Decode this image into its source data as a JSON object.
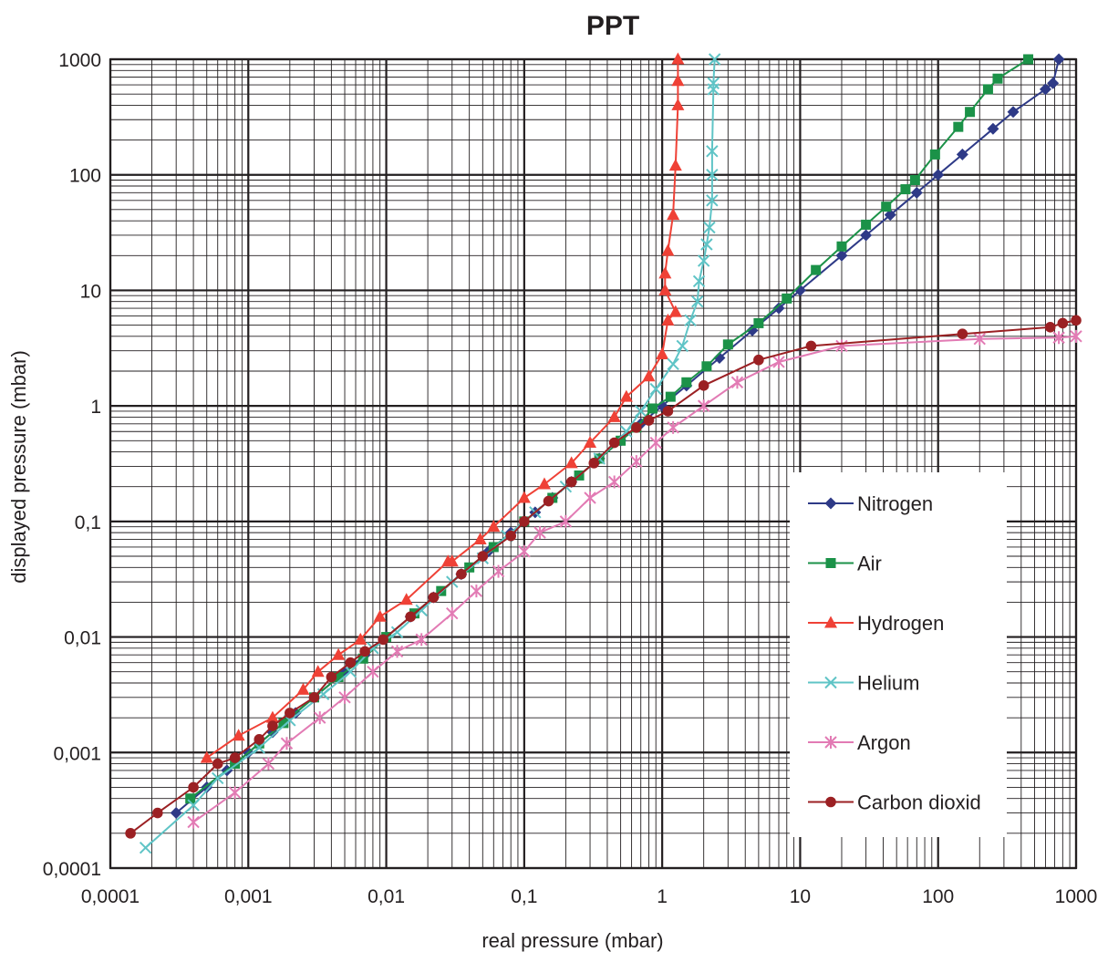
{
  "chart_data": {
    "type": "line",
    "title": "PPT",
    "xlabel": "real pressure (mbar)",
    "ylabel": "displayed pressure (mbar)",
    "x_scale": "log",
    "y_scale": "log",
    "xlim": [
      0.0001,
      1000
    ],
    "ylim": [
      0.0001,
      1000
    ],
    "grid": true,
    "legend_position": "bottom-right",
    "x_tick_labels": [
      "0,0001",
      "0,001",
      "0,01",
      "0,1",
      "1",
      "10",
      "100",
      "1000"
    ],
    "y_tick_labels": [
      "0,0001",
      "0,001",
      "0,01",
      "0,1",
      "1",
      "10",
      "100",
      "1000"
    ],
    "series": [
      {
        "name": "Nitrogen",
        "color": "#2e3a87",
        "marker": "diamond",
        "points": [
          [
            0.0003,
            0.0003
          ],
          [
            0.0005,
            0.0005
          ],
          [
            0.0007,
            0.0007
          ],
          [
            0.001,
            0.001
          ],
          [
            0.0015,
            0.0015
          ],
          [
            0.0022,
            0.0022
          ],
          [
            0.003,
            0.003
          ],
          [
            0.005,
            0.005
          ],
          [
            0.007,
            0.007
          ],
          [
            0.01,
            0.01
          ],
          [
            0.015,
            0.015
          ],
          [
            0.022,
            0.022
          ],
          [
            0.035,
            0.035
          ],
          [
            0.055,
            0.055
          ],
          [
            0.08,
            0.08
          ],
          [
            0.12,
            0.12
          ],
          [
            0.16,
            0.16
          ],
          [
            0.22,
            0.22
          ],
          [
            0.35,
            0.35
          ],
          [
            0.5,
            0.5
          ],
          [
            0.7,
            0.7
          ],
          [
            1,
            1
          ],
          [
            1.5,
            1.5
          ],
          [
            2.6,
            2.6
          ],
          [
            4.5,
            4.5
          ],
          [
            7,
            7
          ],
          [
            10,
            10
          ],
          [
            20,
            20
          ],
          [
            30,
            30
          ],
          [
            45,
            45
          ],
          [
            70,
            70
          ],
          [
            100,
            100
          ],
          [
            150,
            150
          ],
          [
            250,
            250
          ],
          [
            350,
            350
          ],
          [
            600,
            550
          ],
          [
            680,
            620
          ],
          [
            750,
            1000
          ]
        ]
      },
      {
        "name": "Air",
        "color": "#1b9248",
        "marker": "square",
        "points": [
          [
            0.00038,
            0.0004
          ],
          [
            0.0008,
            0.0008
          ],
          [
            0.0012,
            0.0012
          ],
          [
            0.0018,
            0.0018
          ],
          [
            0.003,
            0.003
          ],
          [
            0.0045,
            0.0045
          ],
          [
            0.0068,
            0.0065
          ],
          [
            0.01,
            0.01
          ],
          [
            0.016,
            0.016
          ],
          [
            0.025,
            0.025
          ],
          [
            0.04,
            0.04
          ],
          [
            0.06,
            0.06
          ],
          [
            0.1,
            0.1
          ],
          [
            0.16,
            0.16
          ],
          [
            0.25,
            0.25
          ],
          [
            0.35,
            0.35
          ],
          [
            0.5,
            0.5
          ],
          [
            0.65,
            0.65
          ],
          [
            0.85,
            0.95
          ],
          [
            1.15,
            1.2
          ],
          [
            1.5,
            1.6
          ],
          [
            2.1,
            2.2
          ],
          [
            3,
            3.4
          ],
          [
            5,
            5.2
          ],
          [
            8,
            8.5
          ],
          [
            13,
            15
          ],
          [
            20,
            24
          ],
          [
            30,
            37
          ],
          [
            42,
            53
          ],
          [
            58,
            75
          ],
          [
            68,
            90
          ],
          [
            95,
            150
          ],
          [
            140,
            260
          ],
          [
            170,
            350
          ],
          [
            230,
            550
          ],
          [
            270,
            680
          ],
          [
            450,
            1000
          ]
        ]
      },
      {
        "name": "Hydrogen",
        "color": "#ef4136",
        "marker": "triangle",
        "points": [
          [
            0.0005,
            0.0009
          ],
          [
            0.00085,
            0.0014
          ],
          [
            0.0015,
            0.002
          ],
          [
            0.0025,
            0.0035
          ],
          [
            0.0032,
            0.005
          ],
          [
            0.0045,
            0.007
          ],
          [
            0.0065,
            0.0095
          ],
          [
            0.009,
            0.015
          ],
          [
            0.014,
            0.021
          ],
          [
            0.028,
            0.045
          ],
          [
            0.03,
            0.045
          ],
          [
            0.048,
            0.07
          ],
          [
            0.06,
            0.09
          ],
          [
            0.1,
            0.16
          ],
          [
            0.14,
            0.21
          ],
          [
            0.22,
            0.32
          ],
          [
            0.3,
            0.48
          ],
          [
            0.45,
            0.8
          ],
          [
            0.55,
            1.2
          ],
          [
            0.8,
            1.8
          ],
          [
            1.0,
            2.8
          ],
          [
            1.1,
            5.5
          ],
          [
            1.25,
            6.5
          ],
          [
            1.05,
            10
          ],
          [
            1.05,
            14
          ],
          [
            1.1,
            22
          ],
          [
            1.2,
            45
          ],
          [
            1.25,
            120
          ],
          [
            1.3,
            400
          ],
          [
            1.3,
            650
          ],
          [
            1.3,
            1000
          ]
        ]
      },
      {
        "name": "Helium",
        "color": "#5fc4c6",
        "marker": "x",
        "points": [
          [
            0.00018,
            0.00015
          ],
          [
            0.0004,
            0.00035
          ],
          [
            0.0006,
            0.0006
          ],
          [
            0.0012,
            0.0011
          ],
          [
            0.002,
            0.0019
          ],
          [
            0.0035,
            0.0032
          ],
          [
            0.0055,
            0.005
          ],
          [
            0.008,
            0.008
          ],
          [
            0.012,
            0.011
          ],
          [
            0.018,
            0.017
          ],
          [
            0.03,
            0.03
          ],
          [
            0.05,
            0.048
          ],
          [
            0.075,
            0.075
          ],
          [
            0.12,
            0.12
          ],
          [
            0.2,
            0.2
          ],
          [
            0.35,
            0.35
          ],
          [
            0.55,
            0.6
          ],
          [
            0.7,
            0.9
          ],
          [
            0.9,
            1.4
          ],
          [
            1.2,
            2.3
          ],
          [
            1.4,
            3.3
          ],
          [
            1.6,
            5.5
          ],
          [
            1.8,
            8
          ],
          [
            1.85,
            12
          ],
          [
            2.0,
            18
          ],
          [
            2.1,
            25
          ],
          [
            2.2,
            35
          ],
          [
            2.3,
            60
          ],
          [
            2.3,
            100
          ],
          [
            2.3,
            160
          ],
          [
            2.35,
            550
          ],
          [
            2.35,
            620
          ],
          [
            2.4,
            1000
          ]
        ]
      },
      {
        "name": "Argon",
        "color": "#e27bb4",
        "marker": "star",
        "points": [
          [
            0.0004,
            0.00025
          ],
          [
            0.0008,
            0.00045
          ],
          [
            0.0014,
            0.0008
          ],
          [
            0.0019,
            0.0012
          ],
          [
            0.0033,
            0.002
          ],
          [
            0.005,
            0.003
          ],
          [
            0.008,
            0.005
          ],
          [
            0.012,
            0.0075
          ],
          [
            0.018,
            0.0095
          ],
          [
            0.03,
            0.016
          ],
          [
            0.045,
            0.025
          ],
          [
            0.065,
            0.037
          ],
          [
            0.1,
            0.055
          ],
          [
            0.13,
            0.08
          ],
          [
            0.2,
            0.1
          ],
          [
            0.3,
            0.16
          ],
          [
            0.45,
            0.22
          ],
          [
            0.65,
            0.33
          ],
          [
            0.9,
            0.48
          ],
          [
            1.2,
            0.65
          ],
          [
            2,
            1.0
          ],
          [
            3.5,
            1.6
          ],
          [
            7,
            2.4
          ],
          [
            20,
            3.3
          ],
          [
            200,
            3.8
          ],
          [
            750,
            3.9
          ],
          [
            1000,
            4.0
          ]
        ]
      },
      {
        "name": "Carbon dioxid",
        "color": "#9b2023",
        "marker": "circle",
        "points": [
          [
            0.00014,
            0.0002
          ],
          [
            0.00022,
            0.0003
          ],
          [
            0.0004,
            0.0005
          ],
          [
            0.0006,
            0.0008
          ],
          [
            0.0008,
            0.0009
          ],
          [
            0.0012,
            0.0013
          ],
          [
            0.0015,
            0.0017
          ],
          [
            0.002,
            0.0022
          ],
          [
            0.003,
            0.003
          ],
          [
            0.004,
            0.0045
          ],
          [
            0.0055,
            0.006
          ],
          [
            0.007,
            0.0075
          ],
          [
            0.0095,
            0.0095
          ],
          [
            0.015,
            0.015
          ],
          [
            0.022,
            0.022
          ],
          [
            0.035,
            0.035
          ],
          [
            0.05,
            0.05
          ],
          [
            0.08,
            0.075
          ],
          [
            0.1,
            0.1
          ],
          [
            0.15,
            0.15
          ],
          [
            0.22,
            0.22
          ],
          [
            0.32,
            0.32
          ],
          [
            0.45,
            0.48
          ],
          [
            0.65,
            0.65
          ],
          [
            0.8,
            0.75
          ],
          [
            1.1,
            0.9
          ],
          [
            2,
            1.5
          ],
          [
            5,
            2.5
          ],
          [
            12,
            3.3
          ],
          [
            150,
            4.2
          ],
          [
            650,
            4.8
          ],
          [
            800,
            5.2
          ],
          [
            1000,
            5.5
          ]
        ]
      }
    ]
  }
}
